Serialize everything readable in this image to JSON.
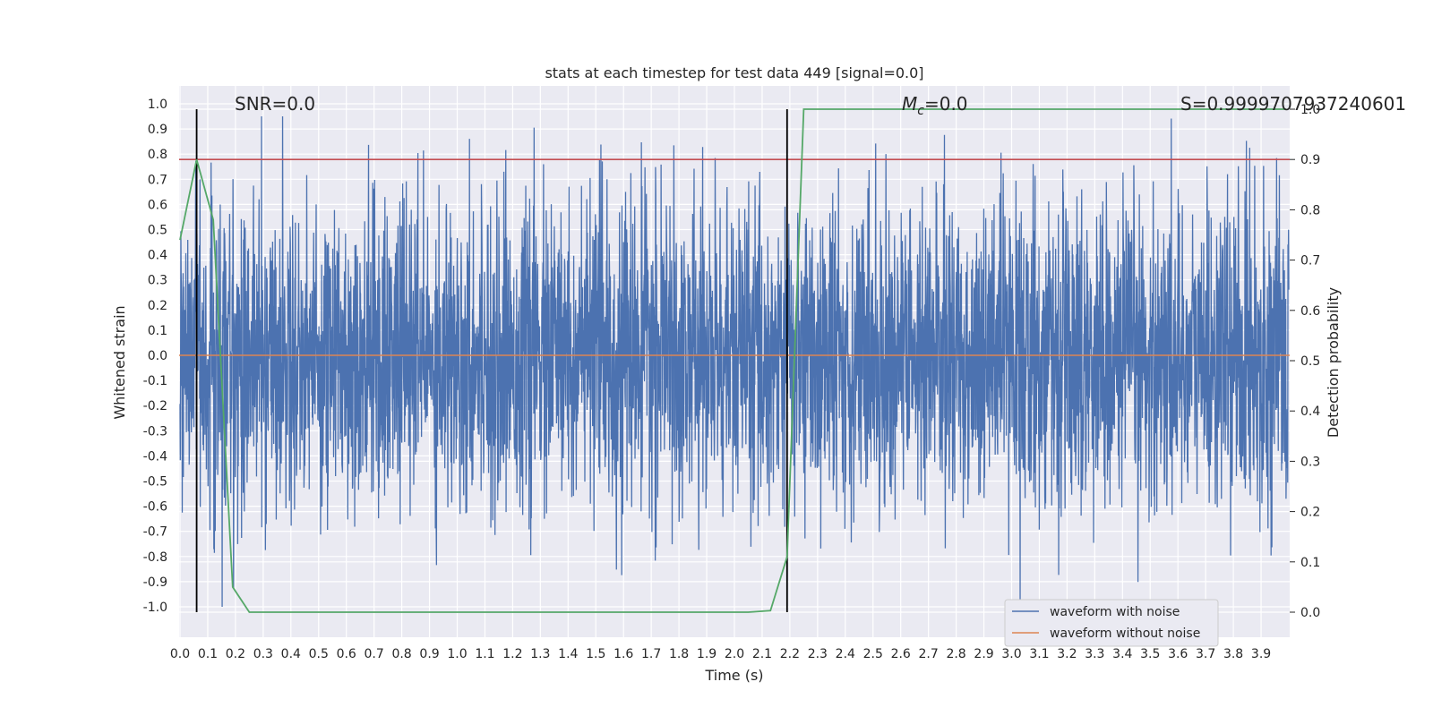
{
  "chart_data": {
    "type": "line",
    "title": "stats at each timestep for test data 449 [signal=0.0]",
    "xlabel": "Time (s)",
    "ylabel_left": "Whitened strain",
    "ylabel_right": "Detection probability",
    "xlim": [
      0.0,
      4.0
    ],
    "ylim_left": [
      -1.0,
      1.0
    ],
    "ylim_right": [
      0.0,
      1.0
    ],
    "x_ticks": [
      "0.0",
      "0.1",
      "0.2",
      "0.3",
      "0.4",
      "0.5",
      "0.6",
      "0.7",
      "0.8",
      "0.9",
      "1.0",
      "1.1",
      "1.2",
      "1.3",
      "1.4",
      "1.5",
      "1.6",
      "1.7",
      "1.8",
      "1.9",
      "2.0",
      "2.1",
      "2.2",
      "2.3",
      "2.4",
      "2.5",
      "2.6",
      "2.7",
      "2.8",
      "2.9",
      "3.0",
      "3.1",
      "3.2",
      "3.3",
      "3.4",
      "3.5",
      "3.6",
      "3.7",
      "3.8",
      "3.9"
    ],
    "y_left_ticks": [
      "1.0",
      "0.9",
      "0.8",
      "0.7",
      "0.6",
      "0.5",
      "0.4",
      "0.3",
      "0.2",
      "0.1",
      "0.0",
      "-0.1",
      "-0.2",
      "-0.3",
      "-0.4",
      "-0.5",
      "-0.6",
      "-0.7",
      "-0.8",
      "-0.9",
      "-1.0"
    ],
    "y_right_ticks": [
      "1.0",
      "0.9",
      "0.8",
      "0.7",
      "0.6",
      "0.5",
      "0.4",
      "0.3",
      "0.2",
      "0.1",
      "0.0"
    ],
    "threshold": 0.9,
    "vertical_markers": [
      0.06,
      2.19
    ],
    "noise_series": {
      "name": "waveform with noise",
      "color": "#4c72b0",
      "typical_amplitude": 0.3,
      "max_peak": 0.95,
      "min_peak": -1.0
    },
    "clean_series": {
      "name": "waveform without noise",
      "color": "#dd8452",
      "value": 0.0
    },
    "probability_series": {
      "color": "#55a868",
      "x": [
        0.0,
        0.06,
        0.12,
        0.19,
        0.25,
        1.3,
        1.5,
        2.05,
        2.13,
        2.19,
        2.25,
        2.3,
        3.99
      ],
      "y": [
        0.74,
        0.9,
        0.78,
        0.05,
        0.0,
        0.0,
        0.0,
        0.0,
        0.003,
        0.11,
        1.0,
        1.0,
        1.0
      ]
    },
    "threshold_color": "#c44e52",
    "annotations": {
      "snr": "SNR=0.0",
      "mc_symbol": "M",
      "mc_sub": "c",
      "mc_value": "=0.0",
      "s_value": "S=0.9999707937240601"
    },
    "legend": {
      "position": "lower-right",
      "entries": [
        "waveform with noise",
        "waveform without noise"
      ]
    }
  }
}
